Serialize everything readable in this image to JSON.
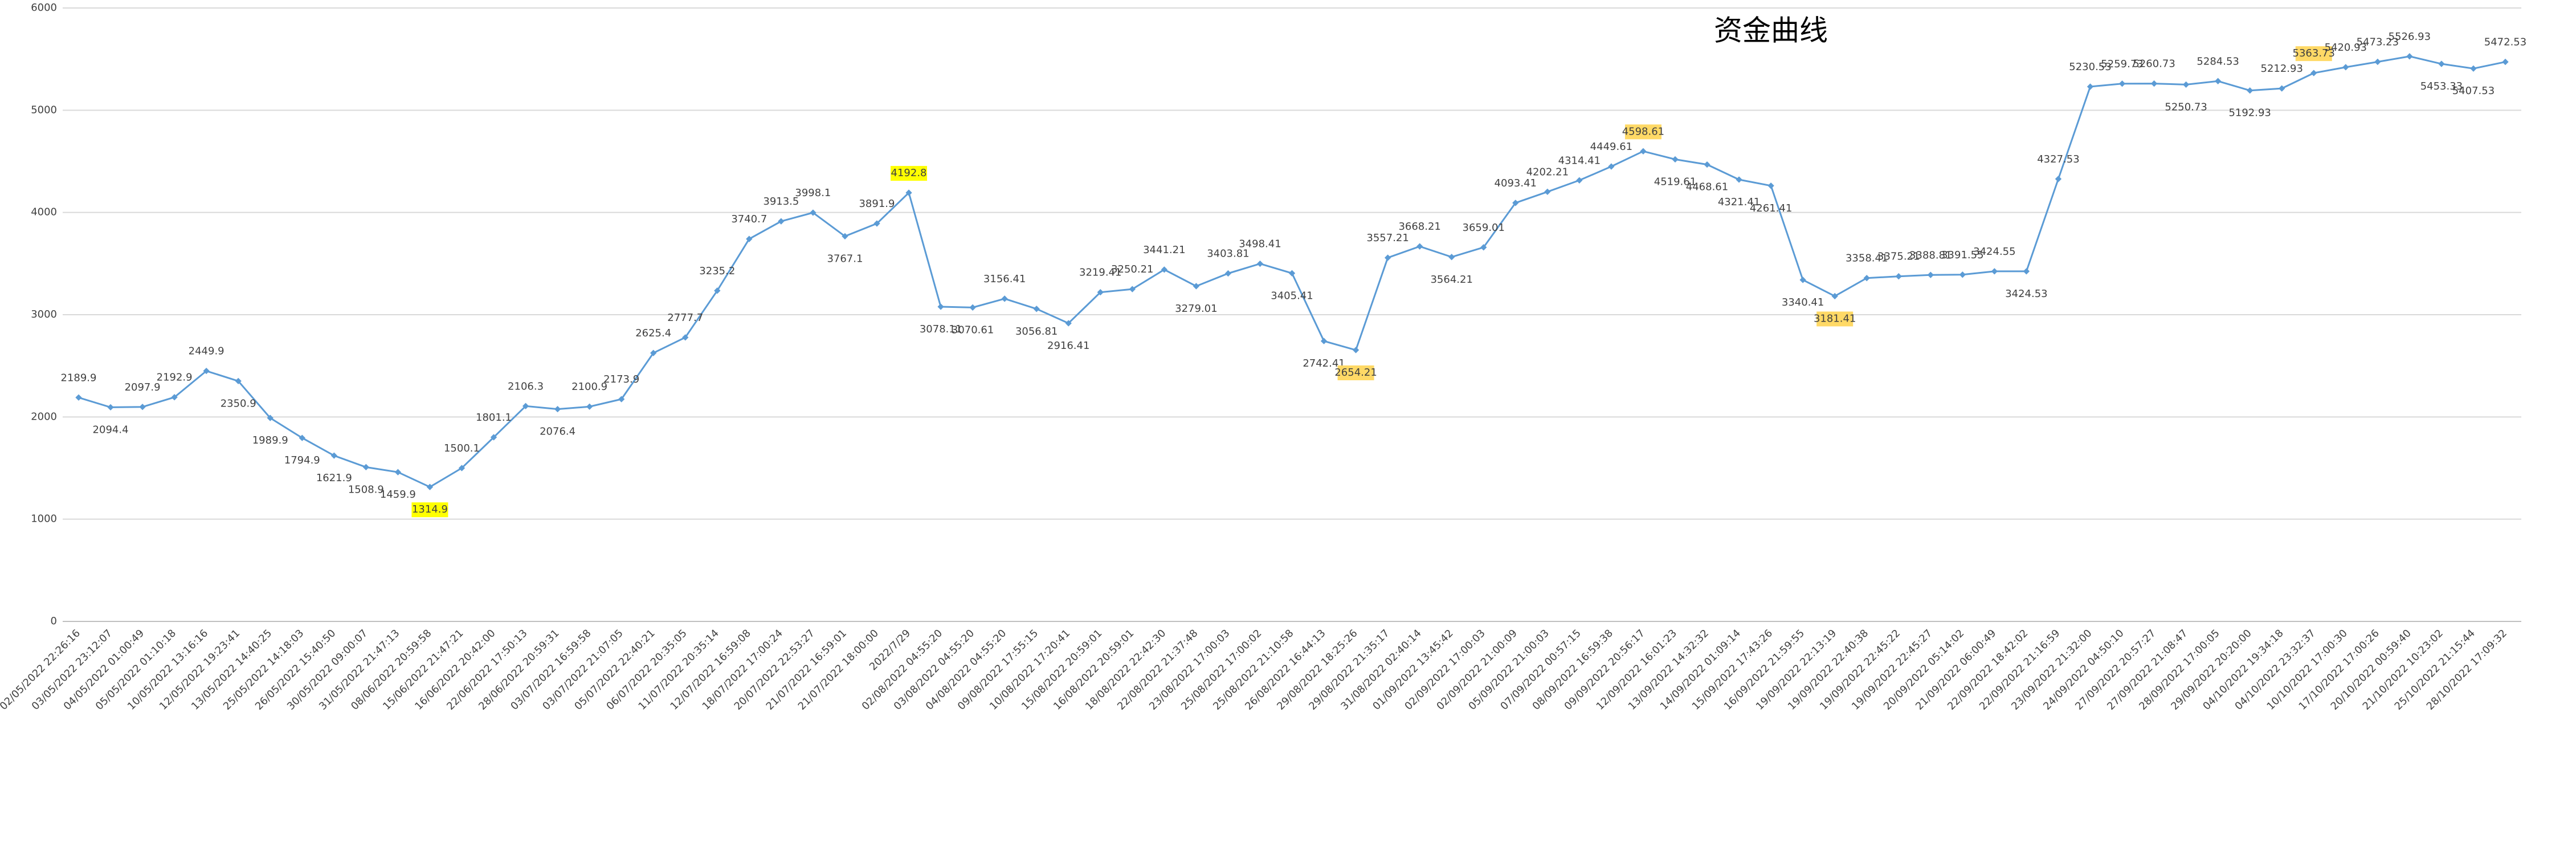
{
  "chart_data": {
    "type": "line",
    "title": "资金曲线",
    "categories": [
      "02/05/2022 22:26:16",
      "03/05/2022 23:12:07",
      "04/05/2022 01:00:49",
      "05/05/2022 01:10:18",
      "10/05/2022 13:16:16",
      "12/05/2022 19:23:41",
      "13/05/2022 14:40:25",
      "25/05/2022 14:18:03",
      "26/05/2022 15:40:50",
      "30/05/2022 09:00:07",
      "31/05/2022 21:47:13",
      "08/06/2022 20:59:58",
      "15/06/2022 21:47:21",
      "16/06/2022 20:42:00",
      "22/06/2022 17:50:13",
      "28/06/2022 20:59:31",
      "03/07/2022 16:59:58",
      "03/07/2022 21:07:05",
      "05/07/2022 22:40:21",
      "06/07/2022 20:35:05",
      "11/07/2022 20:35:14",
      "12/07/2022 16:59:08",
      "18/07/2022 17:00:24",
      "20/07/2022 22:53:27",
      "21/07/2022 16:59:01",
      "21/07/2022 18:00:00",
      "2022/7/29",
      "02/08/2022 04:55:20",
      "03/08/2022 04:55:20",
      "04/08/2022 04:55:20",
      "09/08/2022 17:55:15",
      "10/08/2022 17:20:41",
      "15/08/2022 20:59:01",
      "16/08/2022 20:59:01",
      "18/08/2022 22:42:30",
      "22/08/2022 21:37:48",
      "23/08/2022 17:00:03",
      "25/08/2022 17:00:02",
      "25/08/2022 21:10:58",
      "26/08/2022 16:44:13",
      "29/08/2022 18:25:26",
      "29/08/2022 21:35:17",
      "31/08/2022 02:40:14",
      "01/09/2022 13:45:42",
      "02/09/2022 17:00:03",
      "02/09/2022 21:00:09",
      "05/09/2022 21:00:03",
      "07/09/2022 00:57:15",
      "08/09/2022 16:59:38",
      "09/09/2022 20:56:17",
      "12/09/2022 16:01:23",
      "13/09/2022 14:32:32",
      "14/09/2022 01:09:14",
      "15/09/2022 17:43:26",
      "16/09/2022 21:59:55",
      "19/09/2022 22:13:19",
      "19/09/2022 22:40:38",
      "19/09/2022 22:45:22",
      "19/09/2022 22:45:27",
      "20/09/2022 05:14:02",
      "21/09/2022 06:00:49",
      "22/09/2022 18:42:02",
      "22/09/2022 21:16:59",
      "23/09/2022 21:32:00",
      "24/09/2022 04:50:10",
      "27/09/2022 20:57:27",
      "27/09/2022 21:08:47",
      "28/09/2022 17:00:05",
      "29/09/2022 20:20:00",
      "04/10/2022 19:34:18",
      "04/10/2022 23:32:37",
      "10/10/2022 17:00:30",
      "17/10/2022 17:00:26",
      "20/10/2022 00:59:40",
      "21/10/2022 10:23:02",
      "25/10/2022 21:15:44",
      "28/10/2022 17:09:32"
    ],
    "values": [
      2189.9,
      2094.4,
      2097.9,
      2192.9,
      2449.9,
      2350.9,
      1989.9,
      1794.9,
      1621.9,
      1508.9,
      1459.9,
      1314.9,
      1500.1,
      1801.1,
      2106.3,
      2076.4,
      2100.9,
      2173.9,
      2625.4,
      2777.7,
      3235.2,
      3740.7,
      3913.5,
      3998.1,
      3767.1,
      3891.9,
      4192.8,
      3078.11,
      3070.61,
      3156.41,
      3056.81,
      2916.41,
      3219.41,
      3250.21,
      3441.21,
      3279.01,
      3403.81,
      3498.41,
      3405.41,
      2742.41,
      2654.21,
      3557.21,
      3668.21,
      3564.21,
      3659.01,
      4093.41,
      4202.21,
      4314.41,
      4449.61,
      4598.61,
      4519.61,
      4468.61,
      4321.41,
      4261.41,
      3340.41,
      3181.41,
      3358.41,
      3375.21,
      3388.81,
      3391.55,
      3424.55,
      3424.53,
      4327.53,
      5230.53,
      5259.73,
      5260.73,
      5250.73,
      5284.53,
      5192.93,
      5212.93,
      5363.73,
      5420.93,
      5473.23,
      5526.93,
      5453.33,
      5407.53,
      5472.53
    ],
    "color": "#5b9bd5",
    "ylim": [
      0,
      6000
    ],
    "yticks": [
      0,
      1000,
      2000,
      3000,
      4000,
      5000,
      6000
    ],
    "grid": true,
    "highlights": [
      {
        "index": 11,
        "color": "#ffff00"
      },
      {
        "index": 26,
        "color": "#ffff00"
      },
      {
        "index": 40,
        "color": "#ffd966"
      },
      {
        "index": 49,
        "color": "#ffd966"
      },
      {
        "index": 55,
        "color": "#ffd966"
      },
      {
        "index": 70,
        "color": "#ffd966"
      }
    ]
  }
}
